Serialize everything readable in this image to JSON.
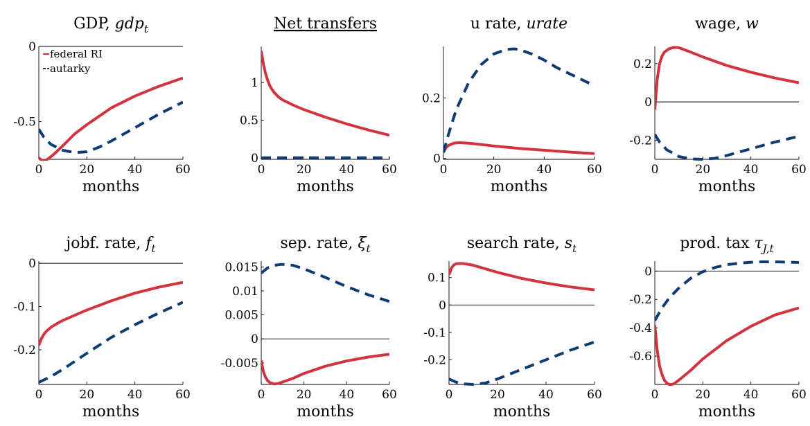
{
  "colors": {
    "federal": "#d1343f",
    "autarky": "#0d3c73"
  },
  "legend": {
    "entries": [
      {
        "label": "federal RI",
        "series": "federal"
      },
      {
        "label": "autarky",
        "series": "autarky"
      }
    ]
  },
  "chart_data": [
    {
      "type": "line",
      "title": "GDP, ",
      "title_math": "gdp",
      "title_sub": "t",
      "title_sub_italic": true,
      "underline": false,
      "xlabel": "months",
      "xlim": [
        0,
        60
      ],
      "ylim": [
        -0.75,
        0
      ],
      "xticks": [
        0,
        20,
        40,
        60
      ],
      "xtick_labels": [
        "0",
        "20",
        "40",
        "60"
      ],
      "yticks": [
        0,
        -0.5
      ],
      "ytick_labels": [
        "0",
        "-0.5"
      ],
      "zero_line": false,
      "top_border": true,
      "legend": "top-left",
      "series": [
        {
          "name": "federal RI",
          "key": "federal",
          "style": "solid",
          "x": [
            0,
            1,
            2,
            3,
            4,
            6,
            8,
            10,
            15,
            20,
            30,
            40,
            50,
            60
          ],
          "y": [
            -0.74,
            -0.755,
            -0.758,
            -0.755,
            -0.745,
            -0.72,
            -0.69,
            -0.66,
            -0.58,
            -0.52,
            -0.41,
            -0.33,
            -0.265,
            -0.21
          ]
        },
        {
          "name": "autarky",
          "key": "autarky",
          "style": "dashed",
          "x": [
            0,
            2,
            5,
            10,
            15,
            20,
            25,
            30,
            40,
            50,
            60
          ],
          "y": [
            -0.55,
            -0.6,
            -0.65,
            -0.69,
            -0.705,
            -0.7,
            -0.67,
            -0.63,
            -0.54,
            -0.45,
            -0.37
          ]
        }
      ]
    },
    {
      "type": "line",
      "title": "Net transfers",
      "title_math": "",
      "title_sub": "",
      "title_sub_italic": false,
      "underline": true,
      "xlabel": "months",
      "xlim": [
        0,
        60
      ],
      "ylim": [
        -0.02,
        1.48
      ],
      "xticks": [
        0,
        20,
        40,
        60
      ],
      "xtick_labels": [
        "0",
        "20",
        "40",
        "60"
      ],
      "yticks": [
        0,
        0.5,
        1
      ],
      "ytick_labels": [
        "0",
        "0.5",
        "1"
      ],
      "zero_line": false,
      "top_border": false,
      "series": [
        {
          "key": "federal",
          "style": "solid",
          "x": [
            0,
            1,
            2,
            3,
            4,
            5,
            6,
            8,
            10,
            15,
            20,
            30,
            40,
            50,
            60
          ],
          "y": [
            1.42,
            1.25,
            1.12,
            1.03,
            0.96,
            0.91,
            0.87,
            0.81,
            0.77,
            0.7,
            0.64,
            0.54,
            0.45,
            0.37,
            0.3
          ]
        },
        {
          "key": "autarky",
          "style": "dashed",
          "x": [
            0,
            60
          ],
          "y": [
            0,
            0
          ]
        }
      ]
    },
    {
      "type": "line",
      "title": "u rate, ",
      "title_math": "urate",
      "title_sub": "",
      "title_sub_italic": false,
      "underline": false,
      "xlabel": "months",
      "xlim": [
        0,
        60
      ],
      "ylim": [
        -0.003,
        0.37
      ],
      "xticks": [
        0,
        20,
        40,
        60
      ],
      "xtick_labels": [
        "0",
        "20",
        "40",
        "60"
      ],
      "yticks": [
        0,
        0.2
      ],
      "ytick_labels": [
        "0",
        "0.2"
      ],
      "zero_line": false,
      "top_border": false,
      "series": [
        {
          "key": "federal",
          "style": "solid",
          "x": [
            0,
            1,
            2,
            4,
            6,
            8,
            10,
            15,
            20,
            30,
            40,
            50,
            60
          ],
          "y": [
            0.02,
            0.035,
            0.043,
            0.05,
            0.052,
            0.051,
            0.05,
            0.046,
            0.041,
            0.033,
            0.027,
            0.021,
            0.016
          ]
        },
        {
          "key": "autarky",
          "style": "dashed",
          "x": [
            0,
            2,
            5,
            10,
            15,
            20,
            25,
            28,
            30,
            35,
            40,
            45,
            50,
            55,
            60
          ],
          "y": [
            0.02,
            0.08,
            0.16,
            0.25,
            0.31,
            0.345,
            0.36,
            0.362,
            0.36,
            0.345,
            0.325,
            0.3,
            0.28,
            0.26,
            0.24
          ]
        }
      ]
    },
    {
      "type": "line",
      "title": "wage, ",
      "title_math": "w",
      "title_sub": "",
      "title_sub_italic": false,
      "underline": false,
      "xlabel": "months",
      "xlim": [
        0,
        60
      ],
      "ylim": [
        -0.3,
        0.29
      ],
      "xticks": [
        0,
        20,
        40,
        60
      ],
      "xtick_labels": [
        "0",
        "20",
        "40",
        "60"
      ],
      "yticks": [
        0.2,
        0,
        -0.2
      ],
      "ytick_labels": [
        "0.2",
        "0",
        "-0.2"
      ],
      "zero_line": true,
      "top_border": false,
      "series": [
        {
          "key": "federal",
          "style": "solid",
          "x": [
            0,
            1,
            2,
            3,
            4,
            6,
            8,
            10,
            15,
            20,
            30,
            40,
            50,
            60
          ],
          "y": [
            -0.04,
            0.12,
            0.2,
            0.24,
            0.26,
            0.278,
            0.285,
            0.283,
            0.26,
            0.235,
            0.19,
            0.155,
            0.125,
            0.1
          ]
        },
        {
          "key": "autarky",
          "style": "dashed",
          "x": [
            0,
            2,
            5,
            10,
            15,
            20,
            25,
            30,
            40,
            50,
            60
          ],
          "y": [
            -0.17,
            -0.21,
            -0.25,
            -0.285,
            -0.298,
            -0.3,
            -0.295,
            -0.28,
            -0.245,
            -0.21,
            -0.18
          ]
        }
      ]
    },
    {
      "type": "line",
      "title": "jobf. rate, ",
      "title_math": "f",
      "title_sub": "t",
      "title_sub_italic": true,
      "underline": false,
      "xlabel": "months",
      "xlim": [
        0,
        60
      ],
      "ylim": [
        -0.28,
        0.005
      ],
      "xticks": [
        0,
        20,
        40,
        60
      ],
      "xtick_labels": [
        "0",
        "20",
        "40",
        "60"
      ],
      "yticks": [
        0,
        -0.1,
        -0.2
      ],
      "ytick_labels": [
        "0",
        "-0.1",
        "-0.2"
      ],
      "zero_line": true,
      "top_border": false,
      "series": [
        {
          "key": "federal",
          "style": "solid",
          "x": [
            0,
            1,
            2,
            3,
            5,
            8,
            10,
            15,
            20,
            30,
            40,
            50,
            60
          ],
          "y": [
            -0.19,
            -0.175,
            -0.165,
            -0.158,
            -0.148,
            -0.138,
            -0.132,
            -0.12,
            -0.108,
            -0.087,
            -0.069,
            -0.055,
            -0.044
          ]
        },
        {
          "key": "autarky",
          "style": "dashed",
          "x": [
            0,
            5,
            10,
            20,
            30,
            40,
            50,
            60
          ],
          "y": [
            -0.275,
            -0.262,
            -0.245,
            -0.208,
            -0.172,
            -0.142,
            -0.115,
            -0.09
          ]
        }
      ]
    },
    {
      "type": "line",
      "title": "sep. rate, ",
      "title_math": "ξ",
      "title_sub": "t",
      "title_sub_italic": true,
      "underline": false,
      "xlabel": "months",
      "xlim": [
        0,
        60
      ],
      "ylim": [
        -0.0095,
        0.0162
      ],
      "xticks": [
        0,
        20,
        40,
        60
      ],
      "xtick_labels": [
        "0",
        "20",
        "40",
        "60"
      ],
      "yticks": [
        0.015,
        0.01,
        0.005,
        0,
        -0.005
      ],
      "ytick_labels": [
        "0.015",
        "0.01",
        "0.005",
        "0",
        "-0.005"
      ],
      "zero_line": true,
      "top_border": false,
      "series": [
        {
          "key": "federal",
          "style": "solid",
          "x": [
            0,
            1,
            2,
            3,
            4,
            5,
            6,
            8,
            10,
            15,
            20,
            30,
            40,
            50,
            60
          ],
          "y": [
            -0.0045,
            -0.0068,
            -0.008,
            -0.0087,
            -0.0091,
            -0.0093,
            -0.0094,
            -0.0093,
            -0.009,
            -0.0082,
            -0.0072,
            -0.0057,
            -0.0046,
            -0.0038,
            -0.0032
          ]
        },
        {
          "key": "autarky",
          "style": "dashed",
          "x": [
            0,
            3,
            6,
            9,
            12,
            15,
            20,
            30,
            40,
            50,
            60
          ],
          "y": [
            0.0137,
            0.0148,
            0.0153,
            0.0155,
            0.0155,
            0.0153,
            0.0146,
            0.0128,
            0.0109,
            0.0092,
            0.0078
          ]
        }
      ]
    },
    {
      "type": "line",
      "title": "search rate, ",
      "title_math": "s",
      "title_sub": "t",
      "title_sub_italic": true,
      "underline": false,
      "xlabel": "months",
      "xlim": [
        0,
        60
      ],
      "ylim": [
        -0.29,
        0.16
      ],
      "xticks": [
        0,
        20,
        40,
        60
      ],
      "xtick_labels": [
        "0",
        "20",
        "40",
        "60"
      ],
      "yticks": [
        0.1,
        0,
        -0.1,
        -0.2
      ],
      "ytick_labels": [
        "0.1",
        "0",
        "-0.1",
        "-0.2"
      ],
      "zero_line": true,
      "top_border": false,
      "series": [
        {
          "key": "federal",
          "style": "solid",
          "x": [
            0,
            1,
            2,
            3,
            5,
            7,
            10,
            15,
            20,
            30,
            40,
            50,
            60
          ],
          "y": [
            0.11,
            0.135,
            0.146,
            0.151,
            0.152,
            0.15,
            0.145,
            0.132,
            0.119,
            0.097,
            0.08,
            0.066,
            0.055
          ]
        },
        {
          "key": "autarky",
          "style": "dashed",
          "x": [
            0,
            3,
            6,
            10,
            15,
            20,
            30,
            40,
            50,
            60
          ],
          "y": [
            -0.27,
            -0.282,
            -0.288,
            -0.29,
            -0.285,
            -0.27,
            -0.235,
            -0.2,
            -0.165,
            -0.135
          ]
        }
      ]
    },
    {
      "type": "line",
      "title": "prod. tax ",
      "title_math": "τ",
      "title_sub": "J,t",
      "title_sub_italic": true,
      "underline": false,
      "xlabel": "months",
      "xlim": [
        0,
        60
      ],
      "ylim": [
        -0.8,
        0.07
      ],
      "xticks": [
        0,
        20,
        40,
        60
      ],
      "xtick_labels": [
        "0",
        "20",
        "40",
        "60"
      ],
      "yticks": [
        0,
        -0.2,
        -0.4,
        -0.6
      ],
      "ytick_labels": [
        "0",
        "-0.2",
        "-0.4",
        "-0.6"
      ],
      "zero_line": true,
      "top_border": false,
      "series": [
        {
          "key": "federal",
          "style": "solid",
          "x": [
            0,
            1,
            2,
            3,
            4,
            5,
            6,
            7,
            8,
            10,
            15,
            20,
            30,
            40,
            50,
            60
          ],
          "y": [
            -0.38,
            -0.56,
            -0.67,
            -0.73,
            -0.77,
            -0.79,
            -0.8,
            -0.8,
            -0.795,
            -0.77,
            -0.7,
            -0.62,
            -0.49,
            -0.39,
            -0.31,
            -0.26
          ]
        },
        {
          "key": "autarky",
          "style": "dashed",
          "x": [
            0,
            3,
            6,
            10,
            15,
            20,
            25,
            30,
            35,
            40,
            45,
            50,
            55,
            60
          ],
          "y": [
            -0.35,
            -0.26,
            -0.19,
            -0.12,
            -0.05,
            -0.005,
            0.025,
            0.045,
            0.055,
            0.062,
            0.065,
            0.065,
            0.063,
            0.06
          ]
        }
      ]
    }
  ]
}
